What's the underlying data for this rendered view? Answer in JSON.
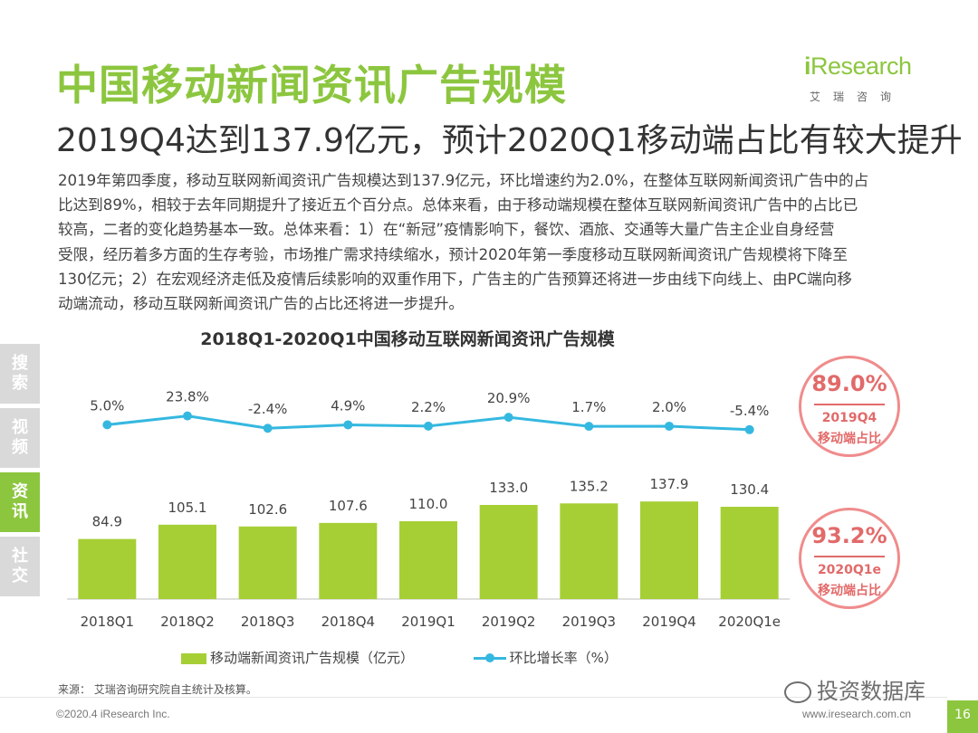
{
  "header": {
    "title": "中国移动新闻资讯广告规模",
    "subtitle": "2019Q4达到137.9亿元，预计2020Q1移动端占比有较大提升"
  },
  "logo": {
    "main": "Research",
    "sub": "艾瑞咨询"
  },
  "body_paragraph": [
    "2019年第四季度，移动互联网新闻资讯广告规模达到137.9亿元，环比增速约为2.0%，在整体互联网新闻资讯广告中的占",
    "比达到89%，相较于去年同期提升了接近五个百分点。总体来看，由于移动端规模在整体互联网新闻资讯广告中的占比已",
    "较高，二者的变化趋势基本一致。总体来看：1）在“新冠”疫情影响下，餐饮、酒旅、交通等大量广告主企业自身经营",
    "受限，经历着多方面的生存考验，市场推广需求持续缩水，预计2020年第一季度移动互联网新闻资讯广告规模将下降至",
    "130亿元；2）在宏观经济走低及疫情后续影响的双重作用下，广告主的广告预算还将进一步由线下向线上、由PC端向移",
    "动端流动，移动互联网新闻资讯广告的占比还将进一步提升。"
  ],
  "sidenav": [
    {
      "label_top": "搜",
      "label_bottom": "索",
      "active": false
    },
    {
      "label_top": "视",
      "label_bottom": "频",
      "active": false
    },
    {
      "label_top": "资",
      "label_bottom": "讯",
      "active": true
    },
    {
      "label_top": "社",
      "label_bottom": "交",
      "active": false
    }
  ],
  "chart_data": {
    "type": "bar+line",
    "title": "2018Q1-2020Q1中国移动互联网新闻资讯广告规模",
    "categories": [
      "2018Q1",
      "2018Q2",
      "2018Q3",
      "2018Q4",
      "2019Q1",
      "2019Q2",
      "2019Q3",
      "2019Q4",
      "2020Q1e"
    ],
    "series": [
      {
        "name": "移动端新闻资讯广告规模（亿元）",
        "type": "bar",
        "values": [
          84.9,
          105.1,
          102.6,
          107.6,
          110.0,
          133.0,
          135.2,
          137.9,
          130.4
        ],
        "labels": [
          "84.9",
          "105.1",
          "102.6",
          "107.6",
          "110.0",
          "133.0",
          "135.2",
          "137.9",
          "130.4"
        ],
        "color": "#a6cf35"
      },
      {
        "name": "环比增长率（%）",
        "type": "line",
        "values": [
          5.0,
          23.8,
          -2.4,
          4.9,
          2.2,
          20.9,
          1.7,
          2.0,
          -5.4
        ],
        "labels": [
          "5.0%",
          "23.8%",
          "-2.4%",
          "4.9%",
          "2.2%",
          "20.9%",
          "1.7%",
          "2.0%",
          "-5.4%"
        ],
        "color": "#35b8e0"
      }
    ],
    "grid": false
  },
  "badges": [
    {
      "pct": "89.0%",
      "line1": "2019Q4",
      "line2": "移动端占比"
    },
    {
      "pct": "93.2%",
      "line1": "2020Q1e",
      "line2": "移动端占比"
    }
  ],
  "legend": {
    "bar_label": "移动端新闻资讯广告规模（亿元）",
    "line_label": "环比增长率（%）"
  },
  "footer": {
    "source": "来源：   艾瑞咨询研究院自主统计及核算。",
    "copyright": "©2020.4 iResearch Inc.",
    "website": "www.iresearch.com.cn",
    "page": "16",
    "watermark": "投资数据库"
  },
  "colors": {
    "brand_green": "#8cc63f",
    "bar": "#a6cf35",
    "line": "#35b8e0",
    "badge": "#e26a6a"
  }
}
